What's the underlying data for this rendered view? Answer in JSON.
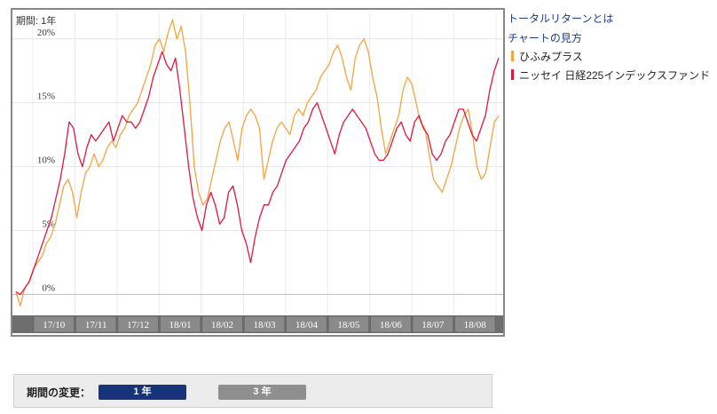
{
  "chart_data": {
    "type": "line",
    "period_label": "期間: 1年",
    "y_ticks": [
      "0%",
      "5%",
      "10%",
      "15%",
      "20%"
    ],
    "y_tick_values": [
      0,
      5,
      10,
      15,
      20
    ],
    "ylim": [
      -1.5,
      22
    ],
    "x_ticks": [
      "17/10",
      "17/11",
      "17/12",
      "18/01",
      "18/02",
      "18/03",
      "18/04",
      "18/05",
      "18/06",
      "18/07",
      "18/08"
    ],
    "grid": true,
    "series": [
      {
        "name": "ひふみプラス",
        "color": "#f5a340",
        "values": [
          0.2,
          -0.9,
          0.5,
          1.0,
          2.0,
          2.5,
          3.0,
          4.0,
          4.5,
          5.5,
          7.0,
          8.5,
          9.0,
          8.0,
          6.0,
          8.0,
          9.5,
          10.0,
          11.0,
          10.0,
          10.5,
          11.5,
          12.0,
          11.5,
          12.5,
          13.0,
          14.0,
          14.5,
          15.0,
          16.0,
          17.0,
          18.0,
          19.5,
          20.0,
          19.0,
          20.5,
          21.5,
          20.0,
          21.0,
          19.0,
          15.0,
          10.0,
          8.0,
          7.0,
          7.5,
          9.0,
          10.5,
          12.0,
          13.0,
          13.5,
          12.0,
          10.5,
          13.0,
          14.0,
          14.5,
          14.0,
          13.0,
          9.0,
          10.5,
          12.0,
          13.0,
          13.5,
          13.0,
          12.5,
          14.0,
          14.5,
          14.0,
          15.0,
          15.5,
          16.0,
          17.0,
          17.5,
          18.0,
          19.0,
          19.5,
          18.5,
          17.0,
          16.0,
          18.5,
          19.5,
          20.0,
          19.0,
          17.0,
          15.5,
          13.0,
          11.0,
          12.0,
          13.0,
          14.0,
          16.0,
          17.0,
          16.5,
          15.0,
          13.5,
          13.0,
          11.0,
          9.0,
          8.5,
          8.0,
          9.0,
          10.0,
          11.5,
          13.0,
          14.0,
          14.5,
          12.5,
          10.0,
          9.0,
          9.5,
          11.5,
          13.5,
          14.0
        ]
      },
      {
        "name": "ニッセイ 日経225インデックスファンド",
        "color": "#e3163f",
        "values": [
          0.2,
          0.0,
          0.5,
          1.0,
          2.0,
          3.0,
          4.0,
          5.0,
          6.0,
          7.5,
          9.0,
          11.0,
          13.5,
          13.0,
          11.0,
          10.0,
          11.5,
          12.5,
          12.0,
          12.5,
          13.0,
          13.5,
          12.0,
          13.0,
          14.0,
          13.5,
          13.5,
          13.0,
          13.5,
          14.5,
          15.5,
          17.0,
          18.0,
          19.0,
          18.0,
          17.5,
          18.5,
          16.0,
          13.0,
          10.0,
          7.5,
          6.0,
          5.0,
          7.0,
          8.0,
          7.0,
          5.5,
          6.0,
          8.0,
          8.5,
          7.0,
          5.0,
          4.0,
          2.5,
          4.5,
          6.0,
          7.0,
          7.0,
          8.0,
          8.5,
          9.5,
          10.5,
          11.0,
          11.5,
          12.0,
          13.0,
          13.5,
          14.5,
          15.0,
          14.0,
          13.0,
          12.0,
          11.0,
          12.5,
          13.5,
          14.0,
          14.5,
          14.0,
          13.5,
          13.0,
          12.0,
          11.0,
          10.5,
          10.5,
          11.0,
          12.0,
          13.0,
          13.5,
          12.5,
          12.0,
          13.5,
          14.0,
          13.0,
          12.5,
          11.0,
          10.5,
          11.0,
          12.0,
          12.5,
          13.5,
          14.5,
          14.5,
          13.5,
          12.5,
          12.0,
          13.0,
          14.0,
          16.0,
          17.5,
          18.5
        ]
      }
    ]
  },
  "sidebar": {
    "total_return_link": "トータルリターンとは",
    "chart_guide_link": "チャートの見方",
    "legend": [
      {
        "label": "ひふみプラス",
        "color": "#f5a340"
      },
      {
        "label": "ニッセイ 日経225インデックスファンド",
        "color": "#e3163f"
      }
    ]
  },
  "period_selector": {
    "label": "期間の変更：",
    "buttons": [
      {
        "label": "1 年",
        "active": true
      },
      {
        "label": "3 年",
        "active": false
      }
    ]
  }
}
